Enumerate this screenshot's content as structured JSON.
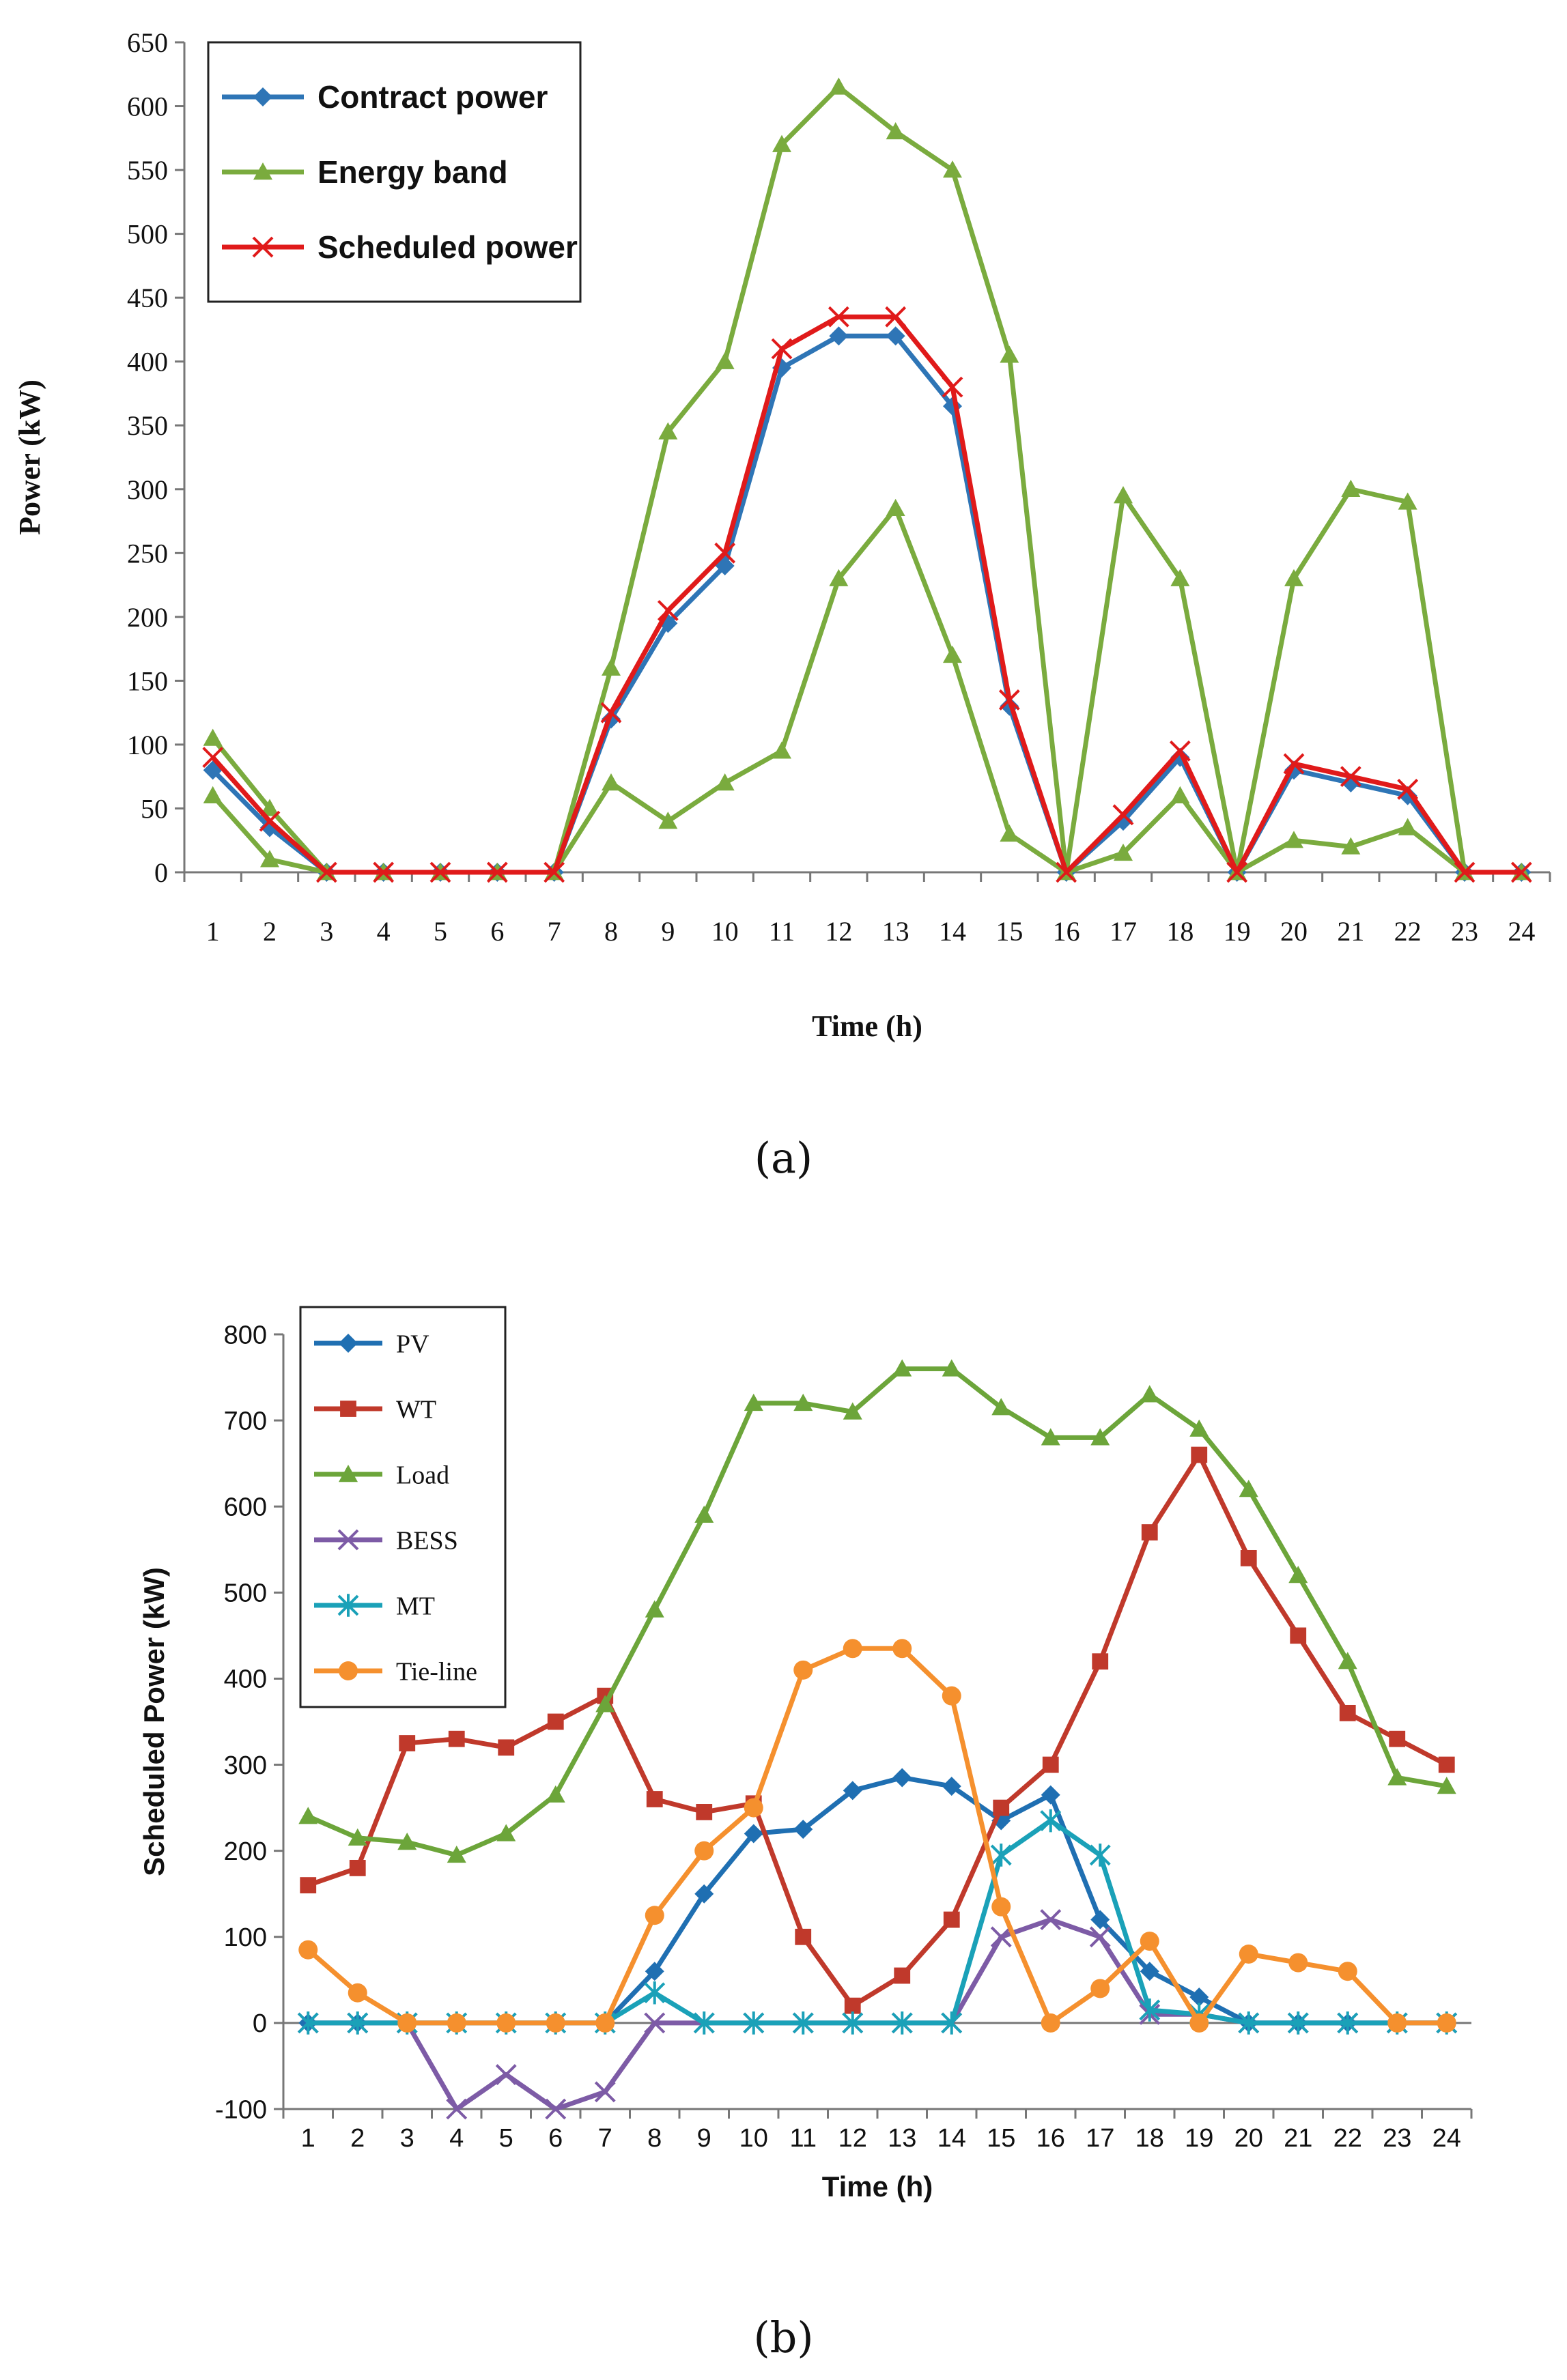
{
  "captions": {
    "a": "(a)",
    "b": "(b)"
  },
  "chart_data": [
    {
      "id": "a",
      "type": "line",
      "title": "",
      "xlabel": "Time (h)",
      "ylabel": "Power (kW)",
      "ylim": [
        0,
        650
      ],
      "yticks": [
        0,
        50,
        100,
        150,
        200,
        250,
        300,
        350,
        400,
        450,
        500,
        550,
        600,
        650
      ],
      "categories": [
        "1",
        "2",
        "3",
        "4",
        "5",
        "6",
        "7",
        "8",
        "9",
        "10",
        "11",
        "12",
        "13",
        "14",
        "15",
        "16",
        "17",
        "18",
        "19",
        "20",
        "21",
        "22",
        "23",
        "24"
      ],
      "legend_position": "top-left",
      "series": [
        {
          "name": "Contract power",
          "color": "#2e75b6",
          "marker": "diamond",
          "legend": true,
          "values": [
            80,
            35,
            0,
            0,
            0,
            0,
            0,
            120,
            195,
            240,
            395,
            420,
            420,
            365,
            130,
            0,
            40,
            90,
            0,
            80,
            70,
            60,
            0,
            0
          ]
        },
        {
          "name": "Energy band",
          "color": "#7aab3e",
          "marker": "triangle",
          "legend": true,
          "values": [
            105,
            50,
            0,
            0,
            0,
            0,
            0,
            160,
            345,
            400,
            570,
            615,
            580,
            550,
            405,
            0,
            295,
            230,
            0,
            230,
            300,
            290,
            0,
            0
          ]
        },
        {
          "name": "Energy band (lower)",
          "color": "#7aab3e",
          "marker": "triangle",
          "legend": false,
          "values": [
            60,
            10,
            0,
            0,
            0,
            0,
            0,
            70,
            40,
            70,
            95,
            230,
            285,
            170,
            30,
            0,
            15,
            60,
            0,
            25,
            20,
            35,
            0,
            0
          ]
        },
        {
          "name": "Scheduled power",
          "color": "#e01a1a",
          "marker": "x",
          "legend": true,
          "values": [
            90,
            40,
            0,
            0,
            0,
            0,
            0,
            125,
            205,
            250,
            410,
            435,
            435,
            380,
            135,
            0,
            45,
            95,
            0,
            85,
            75,
            65,
            0,
            0
          ]
        }
      ]
    },
    {
      "id": "b",
      "type": "line",
      "title": "",
      "xlabel": "Time (h)",
      "ylabel": "Scheduled Power (kW)",
      "ylim": [
        -100,
        800
      ],
      "yticks": [
        -100,
        0,
        100,
        200,
        300,
        400,
        500,
        600,
        700,
        800
      ],
      "categories": [
        "1",
        "2",
        "3",
        "4",
        "5",
        "6",
        "7",
        "8",
        "9",
        "10",
        "11",
        "12",
        "13",
        "14",
        "15",
        "16",
        "17",
        "18",
        "19",
        "20",
        "21",
        "22",
        "23",
        "24"
      ],
      "legend_position": "top-left",
      "series": [
        {
          "name": "PV",
          "color": "#1f6fb2",
          "marker": "diamond",
          "values": [
            0,
            0,
            0,
            0,
            0,
            0,
            0,
            60,
            150,
            220,
            225,
            270,
            285,
            275,
            235,
            265,
            120,
            60,
            30,
            0,
            0,
            0,
            0,
            0
          ]
        },
        {
          "name": "WT",
          "color": "#c0392b",
          "marker": "square",
          "values": [
            160,
            180,
            325,
            330,
            320,
            350,
            380,
            260,
            245,
            255,
            100,
            20,
            55,
            120,
            250,
            300,
            420,
            570,
            660,
            540,
            450,
            360,
            330,
            300
          ]
        },
        {
          "name": "Load",
          "color": "#6ca53a",
          "marker": "triangle",
          "values": [
            240,
            215,
            210,
            195,
            220,
            265,
            370,
            480,
            590,
            720,
            720,
            710,
            760,
            760,
            715,
            680,
            680,
            730,
            690,
            620,
            520,
            420,
            285,
            275
          ]
        },
        {
          "name": "BESS",
          "color": "#7d5ba6",
          "marker": "x",
          "values": [
            0,
            0,
            0,
            -100,
            -60,
            -100,
            -80,
            0,
            0,
            0,
            0,
            0,
            0,
            0,
            100,
            120,
            100,
            10,
            10,
            0,
            0,
            0,
            0,
            0
          ]
        },
        {
          "name": "MT",
          "color": "#1aa1b8",
          "marker": "star",
          "values": [
            0,
            0,
            0,
            0,
            0,
            0,
            0,
            35,
            0,
            0,
            0,
            0,
            0,
            0,
            195,
            235,
            195,
            15,
            10,
            0,
            0,
            0,
            0,
            0
          ]
        },
        {
          "name": "Tie-line",
          "color": "#f5902e",
          "marker": "circle",
          "values": [
            85,
            35,
            0,
            0,
            0,
            0,
            0,
            125,
            200,
            250,
            410,
            435,
            435,
            380,
            135,
            0,
            40,
            95,
            0,
            80,
            70,
            60,
            0,
            0
          ]
        }
      ]
    }
  ]
}
